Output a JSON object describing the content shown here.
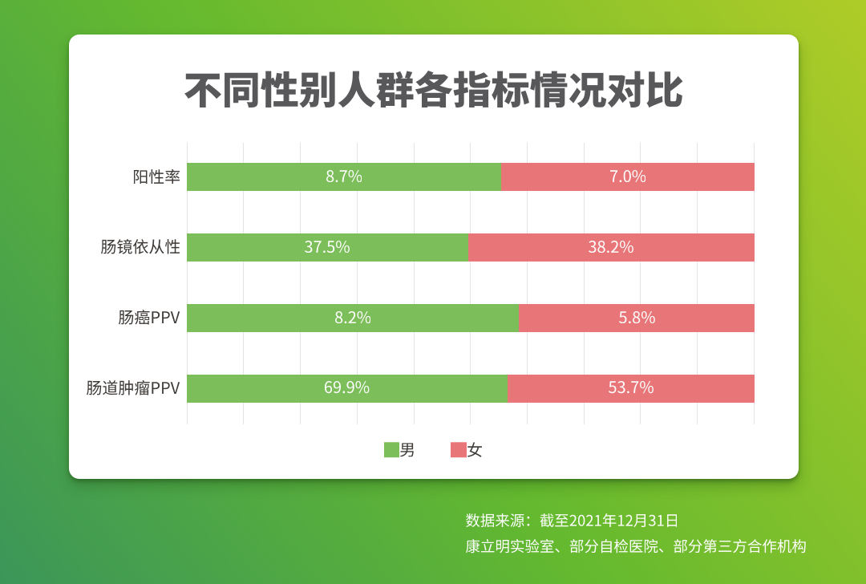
{
  "page": {
    "background": {
      "gradient_angle_deg": 53,
      "gradient_stops": [
        "#3B9659",
        "#64B92F",
        "#AFCC27"
      ]
    },
    "card_color": "#FFFFFF"
  },
  "chart_data": {
    "type": "bar",
    "orientation": "horizontal",
    "stacked": "percent",
    "title": "不同性别人群各指标情况对比",
    "categories": [
      "阳性率",
      "肠镜依从性",
      "肠癌PPV",
      "肠道肿瘤PPV"
    ],
    "series": [
      {
        "name": "男",
        "color": "#7CBE59",
        "values": [
          8.7,
          37.5,
          8.2,
          69.9
        ],
        "labels": [
          "8.7%",
          "37.5%",
          "8.2%",
          "69.9%"
        ]
      },
      {
        "name": "女",
        "color": "#E87678",
        "values": [
          7.0,
          38.2,
          5.8,
          53.7
        ],
        "labels": [
          "7.0%",
          "38.2%",
          "5.8%",
          "53.7%"
        ]
      }
    ],
    "unit": "%",
    "legend": {
      "position": "bottom",
      "items": [
        "男",
        "女"
      ]
    },
    "grid": {
      "vertical_lines": 11,
      "color": "#E4E4E4"
    }
  },
  "footer": {
    "source_line1": "数据来源：截至2021年12月31日",
    "source_line2": "康立明实验室、部分自检医院、部分第三方合作机构"
  },
  "text_colors": {
    "title": "#58585A",
    "category": "#3E3A37",
    "bar_value": "#FFFFFF",
    "legend": "#3E3A37",
    "footer": "#FFFFFF"
  }
}
